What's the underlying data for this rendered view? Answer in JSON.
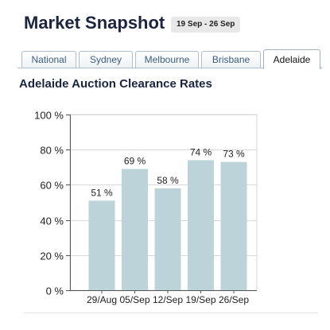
{
  "header": {
    "title": "Market Snapshot",
    "date_range": "19 Sep - 26 Sep"
  },
  "tabs": [
    {
      "label": "National",
      "active": false
    },
    {
      "label": "Sydney",
      "active": false
    },
    {
      "label": "Melbourne",
      "active": false
    },
    {
      "label": "Brisbane",
      "active": false
    },
    {
      "label": "Adelaide",
      "active": true
    }
  ],
  "colors": {
    "bar": "#bcd3da",
    "grid": "#d9d9d9",
    "axis": "#555555",
    "tab_text": "#3d5d80"
  },
  "chart_data": {
    "type": "bar",
    "title": "Adelaide Auction Clearance Rates",
    "categories": [
      "29/Aug",
      "05/Sep",
      "12/Sep",
      "19/Sep",
      "26/Sep"
    ],
    "values": [
      51,
      69,
      58,
      74,
      73
    ],
    "value_labels": [
      "51 %",
      "69 %",
      "58 %",
      "74 %",
      "73 %"
    ],
    "ylim": [
      0,
      100
    ],
    "yticks": [
      0,
      20,
      40,
      60,
      80,
      100
    ],
    "ytick_labels": [
      "0 %",
      "20 %",
      "40 %",
      "60 %",
      "80 %",
      "100 %"
    ],
    "grid": true,
    "xlabel": "",
    "ylabel": ""
  }
}
